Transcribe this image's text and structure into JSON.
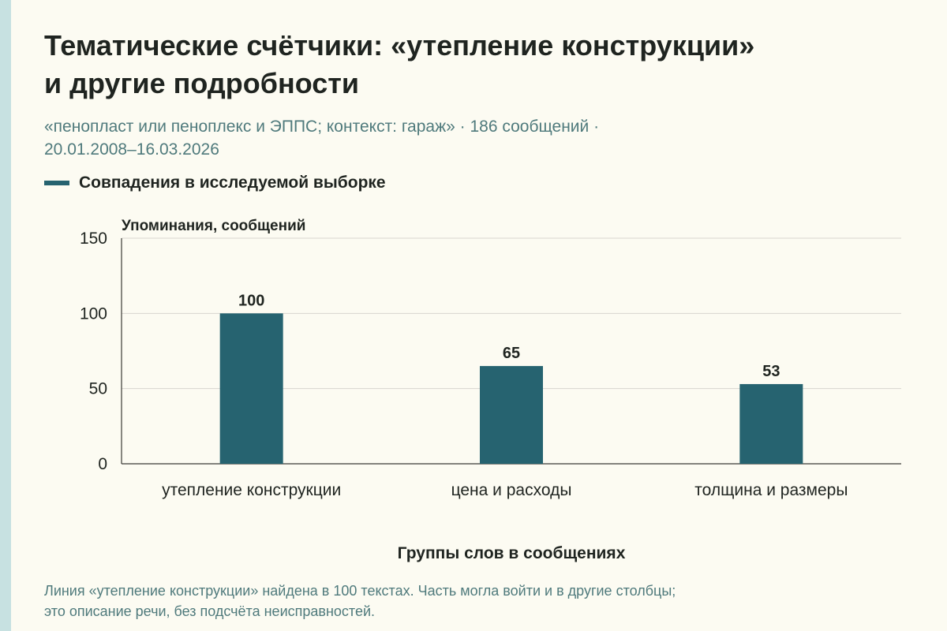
{
  "title_lines": [
    "Тематические счётчики: «утепление конструкции»",
    "и другие подробности"
  ],
  "subtitle_lines": [
    "«пенопласт или пеноплекс и ЭППС; контекст: гараж» · 186 сообщений ·",
    "20.01.2008–16.03.2026"
  ],
  "legend": {
    "label": "Совпадения в исследуемой выборке"
  },
  "footnote_lines": [
    "Линия «утепление конструкции» найдена в 100 текстах. Часть могла войти и в другие столбцы;",
    "это описание речи, без подсчёта неисправностей."
  ],
  "colors": {
    "bar": "#266370",
    "accent_strip": "#c7e1e1",
    "subtitle": "#4f7a7c",
    "grid": "#d7d6cf",
    "axis": "#3a3a36",
    "background": "#fcfbf2"
  },
  "chart_data": {
    "type": "bar",
    "categories": [
      "утепление конструкции",
      "цена и расходы",
      "толщина и размеры"
    ],
    "series": [
      {
        "name": "Совпадения в исследуемой выборке",
        "values": [
          100,
          65,
          53
        ]
      }
    ],
    "data_labels": [
      "100",
      "65",
      "53"
    ],
    "ylabel": "Упоминания, сообщений",
    "xlabel": "Группы слов в сообщениях",
    "ylim": [
      0,
      150
    ],
    "yticks": [
      0,
      50,
      100,
      150
    ],
    "grid": true,
    "legend_position": "top-left"
  }
}
